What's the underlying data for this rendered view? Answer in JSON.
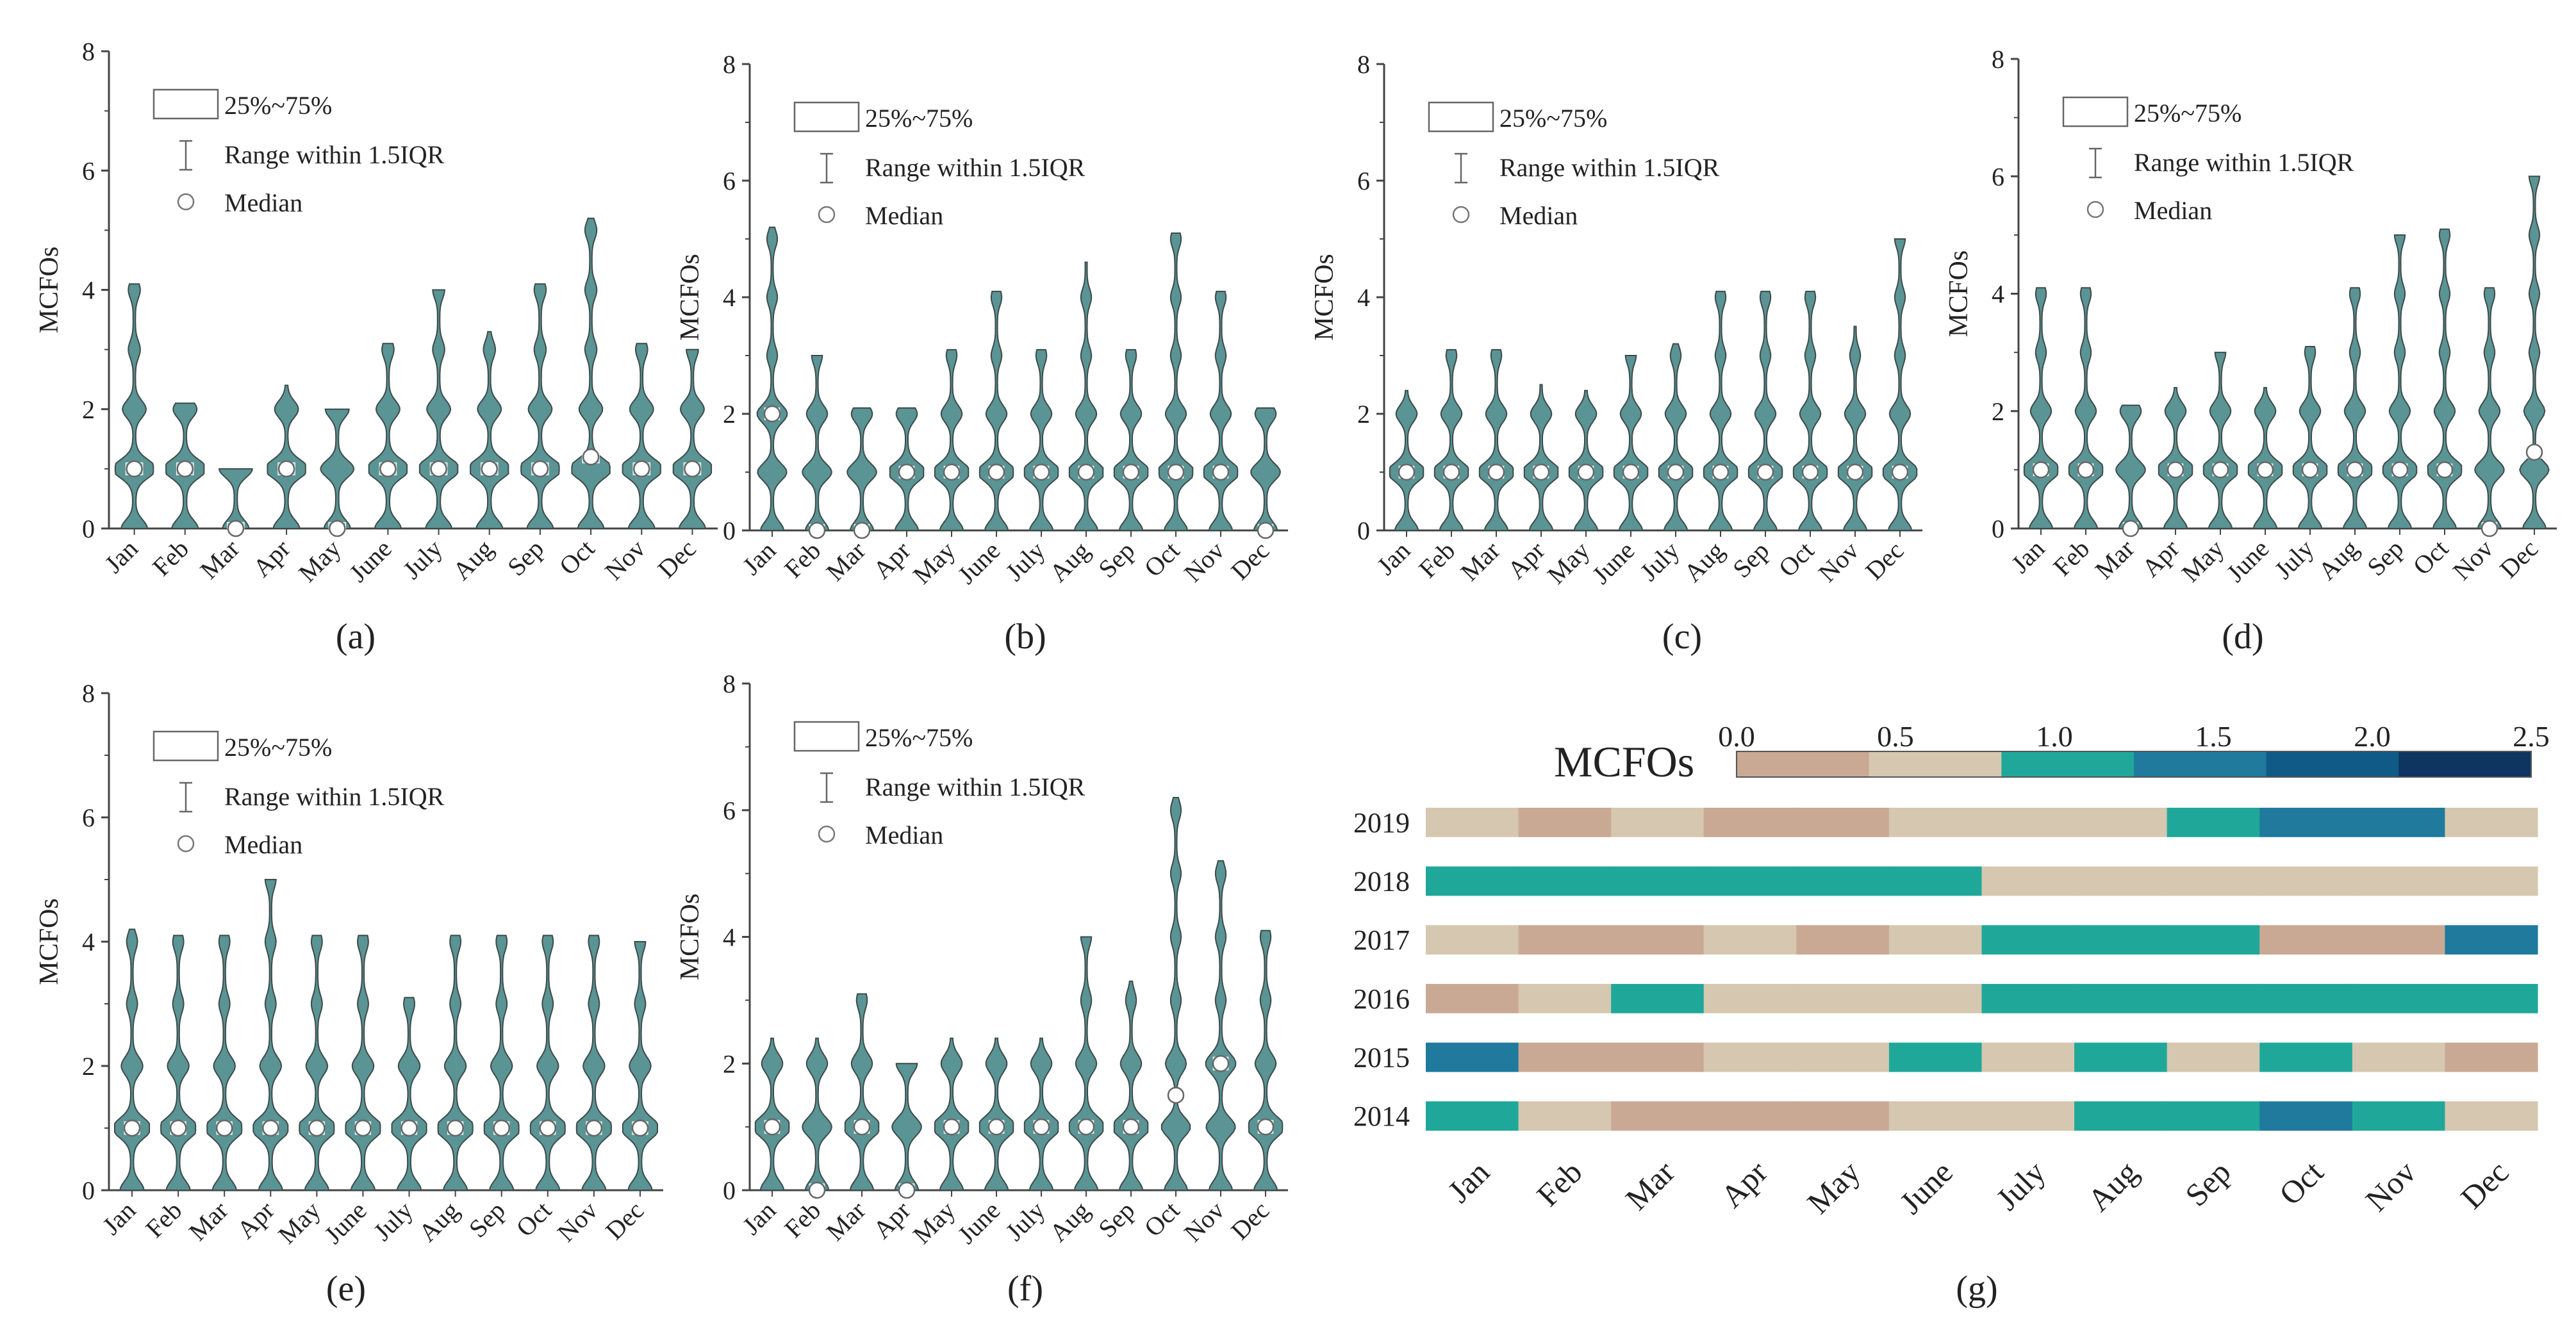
{
  "figure": {
    "legend": {
      "box_label": "25%~75%",
      "range_label": "Range within 1.5IQR",
      "median_label": "Median"
    },
    "colors": {
      "violin_fill": "#5a9494",
      "violin_stroke": "#3e4a4a",
      "axis": "#444444",
      "median_edge": "#666666"
    }
  },
  "chart_data": [
    {
      "type": "violin",
      "panel_label": "(a)",
      "ylabel": "MCFOs",
      "ylim": [
        0,
        8
      ],
      "yticks": [
        0,
        2,
        4,
        6,
        8
      ],
      "categories": [
        "Jan",
        "Feb",
        "Mar",
        "Apr",
        "May",
        "June",
        "July",
        "Aug",
        "Sep",
        "Oct",
        "Nov",
        "Dec"
      ],
      "max": [
        4.1,
        2.1,
        1.0,
        2.4,
        2.0,
        3.1,
        4.0,
        3.3,
        4.1,
        5.2,
        3.1,
        3.0
      ],
      "median": [
        1.0,
        1.0,
        0.0,
        1.0,
        0.0,
        1.0,
        1.0,
        1.0,
        1.0,
        1.2,
        1.0,
        1.0
      ]
    },
    {
      "type": "violin",
      "panel_label": "(b)",
      "ylabel": "MCFOs",
      "ylim": [
        0,
        8
      ],
      "yticks": [
        0,
        2,
        4,
        6,
        8
      ],
      "categories": [
        "Jan",
        "Feb",
        "Mar",
        "Apr",
        "May",
        "June",
        "July",
        "Aug",
        "Sep",
        "Oct",
        "Nov",
        "Dec"
      ],
      "max": [
        5.2,
        3.0,
        2.1,
        2.1,
        3.1,
        4.1,
        3.1,
        4.6,
        3.1,
        5.1,
        4.1,
        2.1
      ],
      "median": [
        2.0,
        0.0,
        0.0,
        1.0,
        1.0,
        1.0,
        1.0,
        1.0,
        1.0,
        1.0,
        1.0,
        0.0
      ]
    },
    {
      "type": "violin",
      "panel_label": "(c)",
      "ylabel": "MCFOs",
      "ylim": [
        0,
        8
      ],
      "yticks": [
        0,
        2,
        4,
        6,
        8
      ],
      "categories": [
        "Jan",
        "Feb",
        "Mar",
        "Apr",
        "May",
        "June",
        "July",
        "Aug",
        "Sep",
        "Oct",
        "Nov",
        "Dec"
      ],
      "max": [
        2.4,
        3.1,
        3.1,
        2.5,
        2.4,
        3.0,
        3.2,
        4.1,
        4.1,
        4.1,
        3.5,
        5.0
      ],
      "median": [
        1.0,
        1.0,
        1.0,
        1.0,
        1.0,
        1.0,
        1.0,
        1.0,
        1.0,
        1.0,
        1.0,
        1.0
      ]
    },
    {
      "type": "violin",
      "panel_label": "(d)",
      "ylabel": "MCFOs",
      "ylim": [
        0,
        8
      ],
      "yticks": [
        0,
        2,
        4,
        6,
        8
      ],
      "categories": [
        "Jan",
        "Feb",
        "Mar",
        "Apr",
        "May",
        "June",
        "July",
        "Aug",
        "Sep",
        "Oct",
        "Nov",
        "Dec"
      ],
      "max": [
        4.1,
        4.1,
        2.1,
        2.4,
        3.0,
        2.4,
        3.1,
        4.1,
        5.0,
        5.1,
        4.1,
        6.0
      ],
      "median": [
        1.0,
        1.0,
        0.0,
        1.0,
        1.0,
        1.0,
        1.0,
        1.0,
        1.0,
        1.0,
        0.0,
        1.3
      ]
    },
    {
      "type": "violin",
      "panel_label": "(e)",
      "ylabel": "MCFOs",
      "ylim": [
        0,
        8
      ],
      "yticks": [
        0,
        2,
        4,
        6,
        8
      ],
      "categories": [
        "Jan",
        "Feb",
        "Mar",
        "Apr",
        "May",
        "June",
        "July",
        "Aug",
        "Sep",
        "Oct",
        "Nov",
        "Dec"
      ],
      "max": [
        4.2,
        4.1,
        4.1,
        5.0,
        4.1,
        4.1,
        3.1,
        4.1,
        4.1,
        4.1,
        4.1,
        4.0
      ],
      "median": [
        1.0,
        1.0,
        1.0,
        1.0,
        1.0,
        1.0,
        1.0,
        1.0,
        1.0,
        1.0,
        1.0,
        1.0
      ]
    },
    {
      "type": "violin",
      "panel_label": "(f)",
      "ylabel": "MCFOs",
      "ylim": [
        0,
        8
      ],
      "yticks": [
        0,
        2,
        4,
        6,
        8
      ],
      "categories": [
        "Jan",
        "Feb",
        "Mar",
        "Apr",
        "May",
        "June",
        "July",
        "Aug",
        "Sep",
        "Oct",
        "Nov",
        "Dec"
      ],
      "max": [
        2.4,
        2.4,
        3.1,
        2.0,
        2.4,
        2.4,
        2.4,
        4.0,
        3.3,
        6.2,
        5.2,
        4.1
      ],
      "median": [
        1.0,
        0.0,
        1.0,
        0.0,
        1.0,
        1.0,
        1.0,
        1.0,
        1.0,
        1.5,
        2.0,
        1.0
      ]
    },
    {
      "type": "heatmap",
      "panel_label": "(g)",
      "colorbar_title": "MCFOs",
      "colorbar_ticks": [
        "0.0",
        "0.5",
        "1.0",
        "1.5",
        "2.0",
        "2.5"
      ],
      "colorbar_colors": [
        "#c9a994",
        "#d6c7b0",
        "#1fa89a",
        "#1f7a9e",
        "#0f5a86",
        "#0d3560"
      ],
      "bin_edges": [
        0,
        0.5,
        1.0,
        1.5,
        2.0,
        2.5
      ],
      "x": [
        "Jan",
        "Feb",
        "Mar",
        "Apr",
        "May",
        "June",
        "July",
        "Aug",
        "Sep",
        "Oct",
        "Nov",
        "Dec"
      ],
      "y": [
        "2019",
        "2018",
        "2017",
        "2016",
        "2015",
        "2014"
      ],
      "values": [
        [
          0.8,
          0.3,
          0.8,
          0.3,
          0.3,
          0.8,
          0.8,
          0.8,
          1.2,
          1.7,
          1.7,
          0.8
        ],
        [
          1.2,
          1.2,
          1.2,
          1.2,
          1.2,
          1.2,
          0.8,
          0.8,
          0.8,
          0.8,
          0.8,
          0.8
        ],
        [
          0.8,
          0.3,
          0.3,
          0.8,
          0.3,
          0.8,
          1.2,
          1.2,
          1.2,
          0.3,
          0.3,
          1.7
        ],
        [
          0.3,
          0.8,
          1.2,
          0.8,
          0.8,
          0.8,
          1.2,
          1.2,
          1.2,
          1.2,
          1.2,
          1.2
        ],
        [
          1.7,
          0.3,
          0.3,
          0.8,
          0.8,
          1.2,
          0.8,
          1.2,
          0.8,
          1.2,
          0.8,
          0.3
        ],
        [
          1.2,
          0.8,
          0.3,
          0.3,
          0.3,
          0.8,
          0.8,
          1.2,
          1.2,
          1.7,
          1.2,
          0.8
        ]
      ]
    }
  ]
}
